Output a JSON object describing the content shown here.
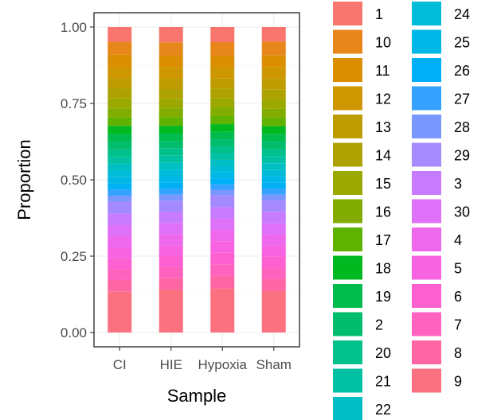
{
  "chart_data": {
    "type": "bar",
    "stacked": true,
    "title": "",
    "xlabel": "Sample",
    "ylabel": "Proportion",
    "ylim": [
      0,
      1
    ],
    "yticks": [
      "0.00",
      "0.25",
      "0.50",
      "0.75",
      "1.00"
    ],
    "grid": true,
    "legend_position": "right",
    "categories": [
      "CI",
      "HIE",
      "Hypoxia",
      "Sham"
    ],
    "series": [
      {
        "name": "1",
        "color": "#F8766D",
        "values": [
          0.045,
          0.047,
          0.047,
          0.045
        ]
      },
      {
        "name": "10",
        "color": "#E7861B",
        "values": [
          0.04,
          0.04,
          0.041,
          0.042
        ]
      },
      {
        "name": "11",
        "color": "#DB8E00",
        "values": [
          0.038,
          0.037,
          0.037,
          0.038
        ]
      },
      {
        "name": "12",
        "color": "#CE9700",
        "values": [
          0.034,
          0.035,
          0.035,
          0.036
        ]
      },
      {
        "name": "13",
        "color": "#BE9C00",
        "values": [
          0.032,
          0.032,
          0.032,
          0.033
        ]
      },
      {
        "name": "14",
        "color": "#AEA200",
        "values": [
          0.03,
          0.03,
          0.03,
          0.03
        ]
      },
      {
        "name": "15",
        "color": "#9AA800",
        "values": [
          0.03,
          0.029,
          0.028,
          0.029
        ]
      },
      {
        "name": "16",
        "color": "#82AD00",
        "values": [
          0.028,
          0.028,
          0.027,
          0.028
        ]
      },
      {
        "name": "17",
        "color": "#60B200",
        "values": [
          0.026,
          0.026,
          0.025,
          0.026
        ]
      },
      {
        "name": "18",
        "color": "#00B81F",
        "values": [
          0.025,
          0.024,
          0.024,
          0.025
        ]
      },
      {
        "name": "19",
        "color": "#00BB4E",
        "values": [
          0.024,
          0.023,
          0.023,
          0.023
        ]
      },
      {
        "name": "2",
        "color": "#00BD6D",
        "values": [
          0.023,
          0.023,
          0.022,
          0.023
        ]
      },
      {
        "name": "20",
        "color": "#00C08B",
        "values": [
          0.022,
          0.022,
          0.021,
          0.022
        ]
      },
      {
        "name": "21",
        "color": "#00C1A3",
        "values": [
          0.022,
          0.022,
          0.021,
          0.022
        ]
      },
      {
        "name": "22",
        "color": "#00BFC4",
        "values": [
          0.021,
          0.021,
          0.02,
          0.021
        ]
      },
      {
        "name": "24",
        "color": "#00BCD8",
        "values": [
          0.02,
          0.02,
          0.019,
          0.02
        ]
      },
      {
        "name": "25",
        "color": "#00B8E7",
        "values": [
          0.02,
          0.02,
          0.019,
          0.019
        ]
      },
      {
        "name": "26",
        "color": "#00B0F6",
        "values": [
          0.019,
          0.019,
          0.018,
          0.019
        ]
      },
      {
        "name": "27",
        "color": "#35A2FF",
        "values": [
          0.018,
          0.018,
          0.017,
          0.018
        ]
      },
      {
        "name": "28",
        "color": "#7997FF",
        "values": [
          0.018,
          0.018,
          0.017,
          0.017
        ]
      },
      {
        "name": "29",
        "color": "#A58AFF",
        "values": [
          0.037,
          0.035,
          0.037,
          0.036
        ]
      },
      {
        "name": "3",
        "color": "#C77CFF",
        "values": [
          0.035,
          0.034,
          0.036,
          0.036
        ]
      },
      {
        "name": "30",
        "color": "#DF70F8",
        "values": [
          0.034,
          0.034,
          0.035,
          0.034
        ]
      },
      {
        "name": "4",
        "color": "#ED68ED",
        "values": [
          0.034,
          0.034,
          0.035,
          0.034
        ]
      },
      {
        "name": "5",
        "color": "#F763E0",
        "values": [
          0.034,
          0.034,
          0.036,
          0.034
        ]
      },
      {
        "name": "6",
        "color": "#FD61D1",
        "values": [
          0.033,
          0.034,
          0.036,
          0.035
        ]
      },
      {
        "name": "7",
        "color": "#FF63BF",
        "values": [
          0.033,
          0.034,
          0.036,
          0.035
        ]
      },
      {
        "name": "8",
        "color": "#FF67A4",
        "values": [
          0.036,
          0.036,
          0.039,
          0.038
        ]
      },
      {
        "name": "9",
        "color": "#FC717F",
        "values": [
          0.125,
          0.131,
          0.137,
          0.128
        ]
      }
    ]
  }
}
